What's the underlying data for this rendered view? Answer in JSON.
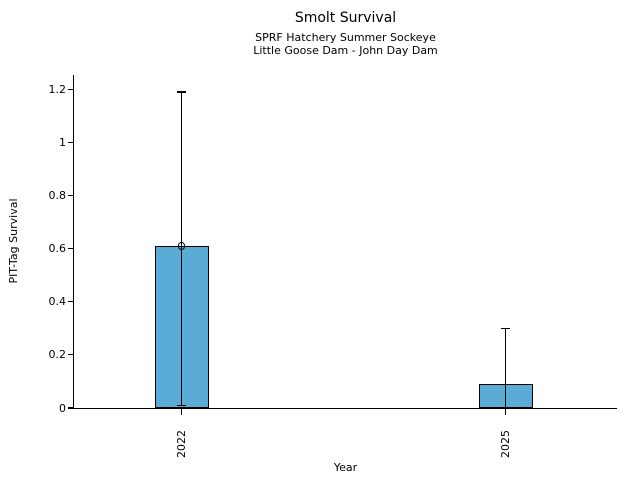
{
  "chart_data": {
    "type": "bar",
    "title": "Smolt Survival",
    "subtitle_line1": "SPRF Hatchery Summer Sockeye",
    "subtitle_line2": "Little Goose Dam - John Day Dam",
    "xlabel": "Year",
    "ylabel": "PIT-Tag Survival",
    "categories": [
      "2022",
      "2025"
    ],
    "values": [
      0.61,
      0.09
    ],
    "error_low": [
      0.01,
      0.0
    ],
    "error_high": [
      1.19,
      0.3
    ],
    "point_marker_on_bar": [
      true,
      false
    ],
    "yticks": [
      0,
      0.2,
      0.4,
      0.6,
      0.8,
      1,
      1.2
    ],
    "ytick_labels": [
      "0",
      "0.2",
      "0.4",
      "0.6",
      "0.8",
      "1",
      "1.2"
    ],
    "ylim": [
      0,
      1.25
    ],
    "grid": false,
    "legend_position": "none",
    "colors": {
      "bar_fill": "#5aabd5",
      "bar_edge": "#000000",
      "error_bar": "#000000",
      "text": "#000000",
      "background": "#ffffff"
    }
  }
}
